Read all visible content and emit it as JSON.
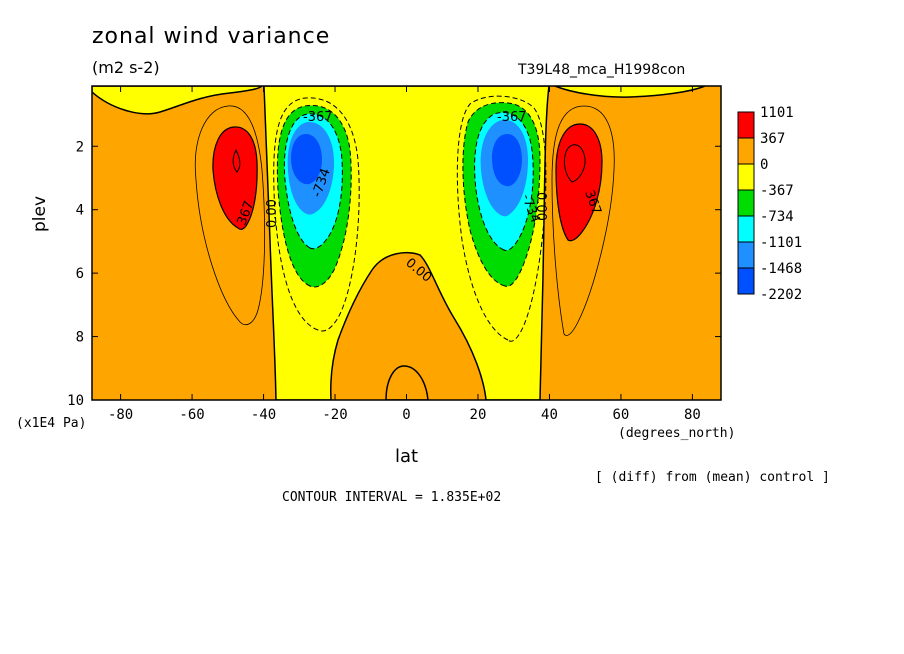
{
  "chart_data": {
    "type": "contour",
    "title": "zonal wind variance",
    "units": "(m2 s-2)",
    "run_label": "T39L48_mca_H1998con",
    "xlabel": "lat",
    "xunit": "(degrees_north)",
    "ylabel": "plev",
    "yunit": "(x1E4 Pa)",
    "xlim": [
      -88,
      88
    ],
    "ylim": [
      10,
      0.1
    ],
    "x_ticks": [
      "-80",
      "-60",
      "-40",
      "-20",
      "0",
      "20",
      "40",
      "60",
      "80"
    ],
    "y_ticks": [
      "2",
      "4",
      "6",
      "8",
      "10"
    ],
    "colorbar_levels": [
      "1101",
      "367",
      "0",
      "-367",
      "-734",
      "-1101",
      "-1468",
      "-2202"
    ],
    "colorbar_colors": [
      "#ff0000",
      "#ffa500",
      "#ffff00",
      "#00dc00",
      "#00ffff",
      "#1e90ff",
      "#0050ff"
    ],
    "contour_labels": [
      "-367",
      "-367",
      "-734",
      "-734",
      "367",
      "367",
      "0.00",
      "0.00",
      "0.00"
    ],
    "features": [
      {
        "name": "minimum SH",
        "lat": -29,
        "plev": 2.4,
        "value": -2202
      },
      {
        "name": "minimum NH",
        "lat": 28,
        "plev": 2.4,
        "value": -2202
      },
      {
        "name": "maximum SH",
        "lat": -48,
        "plev": 2.6,
        "value": 1101
      },
      {
        "name": "maximum NH",
        "lat": 46,
        "plev": 2.6,
        "value": 1101
      }
    ],
    "subtitle": "[ (diff) from (mean) control ]",
    "contour_interval": "CONTOUR INTERVAL = 1.835E+02"
  }
}
